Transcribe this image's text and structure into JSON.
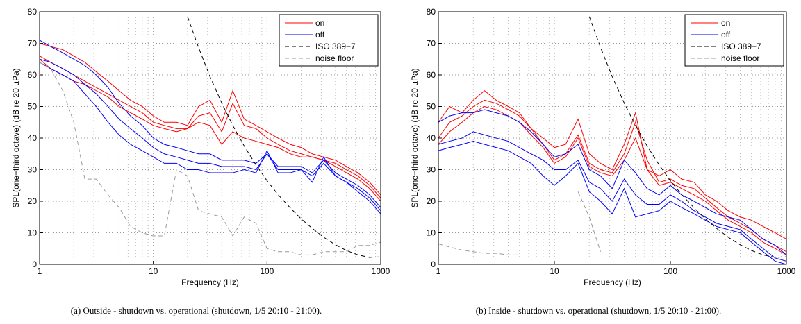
{
  "chart_data": [
    {
      "type": "line",
      "x_label": "Frequency (Hz)",
      "y_label": "SPL(one−third octave) (dB re 20 µPa)",
      "caption": "(a) Outside - shutdown vs. operational (shutdown, 1/5 20:10 - 21:00).",
      "x": [
        1,
        1.25,
        1.6,
        2,
        2.5,
        3.15,
        4,
        5,
        6.3,
        8,
        10,
        12.5,
        16,
        20,
        25,
        31.5,
        40,
        50,
        63,
        80,
        100,
        125,
        160,
        200,
        250,
        315,
        400,
        500,
        630,
        800,
        1000
      ],
      "xscale": "log",
      "xlim": [
        1,
        1000
      ],
      "xticks": [
        1,
        10,
        100,
        1000
      ],
      "ylim": [
        0,
        80
      ],
      "yticks": [
        0,
        10,
        20,
        30,
        40,
        50,
        60,
        70,
        80
      ],
      "grid": true,
      "minor_grid": true,
      "legend": "upper right",
      "series": [
        {
          "name": "on",
          "color": "#ff0000",
          "linestyle": "solid",
          "values": [
            70,
            69,
            68,
            66,
            64,
            61,
            58,
            55,
            52,
            50,
            47,
            45,
            45,
            44,
            50,
            52,
            45,
            55,
            46,
            44,
            42,
            40,
            38,
            37,
            35,
            34,
            33,
            31,
            29,
            26,
            22
          ]
        },
        {
          "color": "#ff0000",
          "linestyle": "solid",
          "values": [
            66,
            64,
            62,
            60,
            58,
            56,
            54,
            52,
            50,
            48,
            45,
            44,
            43,
            43,
            47,
            48,
            42,
            51,
            44,
            43,
            40,
            38,
            36,
            35,
            34,
            33,
            32,
            30,
            28,
            25,
            21
          ]
        },
        {
          "color": "#ff0000",
          "linestyle": "solid",
          "values": [
            65,
            62,
            60,
            58,
            57,
            55,
            53,
            50,
            48,
            46,
            44,
            43,
            42,
            43,
            45,
            44,
            38,
            42,
            40,
            39,
            38,
            37,
            35,
            34,
            34,
            33,
            31,
            29,
            27,
            24,
            20
          ]
        },
        {
          "name": "off",
          "color": "#0000ff",
          "linestyle": "solid",
          "values": [
            71,
            69,
            67,
            65,
            63,
            60,
            56,
            51,
            47,
            44,
            40,
            38,
            37,
            36,
            35,
            35,
            33,
            33,
            33,
            32,
            35,
            31,
            31,
            31,
            29,
            33,
            29,
            27,
            25,
            22,
            18
          ]
        },
        {
          "color": "#0000ff",
          "linestyle": "solid",
          "values": [
            65,
            64,
            62,
            60,
            57,
            54,
            50,
            46,
            43,
            40,
            37,
            35,
            34,
            33,
            32,
            32,
            31,
            31,
            31,
            30,
            35,
            30,
            30,
            30,
            28,
            32,
            28,
            26,
            24,
            21,
            17
          ]
        },
        {
          "color": "#0000ff",
          "linestyle": "solid",
          "values": [
            64,
            62,
            60,
            58,
            54,
            50,
            45,
            41,
            38,
            36,
            34,
            32,
            32,
            30,
            30,
            29,
            29,
            29,
            30,
            29,
            36,
            29,
            29,
            30,
            26,
            34,
            28,
            26,
            23,
            20,
            16
          ]
        },
        {
          "name": "ISO 389−7",
          "color": "#000000",
          "linestyle": "dashed",
          "values": [
            null,
            null,
            null,
            null,
            null,
            null,
            null,
            null,
            null,
            null,
            null,
            null,
            null,
            78.5,
            68.7,
            59.5,
            51.1,
            44,
            37.5,
            31.5,
            26.5,
            22.1,
            17.9,
            14.4,
            11.4,
            8.6,
            6.2,
            4.4,
            3,
            2.2,
            2.4
          ]
        },
        {
          "name": "noise floor",
          "color": "#999999",
          "linestyle": "dashed",
          "values": [
            64,
            62,
            55,
            45,
            27,
            27,
            22,
            18,
            12,
            10,
            9,
            9,
            30,
            28,
            17,
            16,
            15,
            9,
            15,
            13,
            5,
            4,
            4,
            3,
            3,
            4,
            4,
            4,
            6,
            6,
            7
          ]
        }
      ]
    },
    {
      "type": "line",
      "x_label": "Frequency (Hz)",
      "y_label": "SPL(one−third octave) (dB re 20 µPa)",
      "caption": "(b) Inside - shutdown vs. operational (shutdown, 1/5 20:10 - 21:00).",
      "x": [
        1,
        1.25,
        1.6,
        2,
        2.5,
        3.15,
        4,
        5,
        6.3,
        8,
        10,
        12.5,
        16,
        20,
        25,
        31.5,
        40,
        50,
        63,
        80,
        100,
        125,
        160,
        200,
        250,
        315,
        400,
        500,
        630,
        800,
        1000
      ],
      "xscale": "log",
      "xlim": [
        1,
        1000
      ],
      "xticks": [
        1,
        10,
        100,
        1000
      ],
      "ylim": [
        0,
        80
      ],
      "yticks": [
        0,
        10,
        20,
        30,
        40,
        50,
        60,
        70,
        80
      ],
      "grid": true,
      "minor_grid": true,
      "legend": "upper right",
      "series": [
        {
          "name": "on",
          "color": "#ff0000",
          "linestyle": "solid",
          "values": [
            45,
            50,
            48,
            52,
            55,
            52,
            50,
            48,
            43,
            40,
            37,
            38,
            46,
            35,
            32,
            30,
            38,
            48,
            30,
            28,
            30,
            27,
            26,
            22,
            20,
            17,
            15,
            14,
            12,
            10,
            8
          ]
        },
        {
          "color": "#ff0000",
          "linestyle": "solid",
          "values": [
            40,
            45,
            47,
            50,
            52,
            51,
            49,
            47,
            43,
            38,
            33,
            35,
            41,
            32,
            30,
            29,
            35,
            45,
            33,
            26,
            27,
            25,
            24,
            21,
            18,
            15,
            13,
            11,
            8,
            6,
            4
          ]
        },
        {
          "color": "#ff0000",
          "linestyle": "solid",
          "values": [
            38,
            42,
            45,
            48,
            50,
            49,
            47,
            45,
            41,
            37,
            32,
            34,
            40,
            31,
            29,
            28,
            33,
            40,
            30,
            25,
            26,
            24,
            22,
            20,
            17,
            14,
            12,
            10,
            7,
            5,
            3
          ]
        },
        {
          "name": "off",
          "color": "#0000ff",
          "linestyle": "solid",
          "values": [
            45,
            47,
            48,
            48,
            49,
            48,
            47,
            45,
            42,
            38,
            34,
            35,
            38,
            30,
            28,
            24,
            33,
            29,
            24,
            22,
            25,
            22,
            20,
            18,
            16,
            15,
            14,
            11,
            8,
            6,
            3
          ]
        },
        {
          "color": "#0000ff",
          "linestyle": "solid",
          "values": [
            38,
            39,
            40,
            42,
            41,
            40,
            39,
            37,
            35,
            33,
            30,
            30,
            33,
            26,
            24,
            20,
            27,
            22,
            19,
            19,
            22,
            20,
            17,
            15,
            13,
            12,
            11,
            8,
            5,
            2,
            1
          ]
        },
        {
          "color": "#0000ff",
          "linestyle": "solid",
          "values": [
            36,
            37,
            38,
            39,
            38,
            37,
            36,
            34,
            32,
            28,
            25,
            28,
            32,
            23,
            20,
            16,
            24,
            15,
            16,
            17,
            20,
            18,
            16,
            14,
            12,
            11,
            10,
            7,
            4,
            1,
            0
          ]
        },
        {
          "name": "ISO 389−7",
          "color": "#000000",
          "linestyle": "dashed",
          "values": [
            null,
            null,
            null,
            null,
            null,
            null,
            null,
            null,
            null,
            null,
            null,
            null,
            null,
            78.5,
            68.7,
            59.5,
            51.1,
            44,
            37.5,
            31.5,
            26.5,
            22.1,
            17.9,
            14.4,
            11.4,
            8.6,
            6.2,
            4.4,
            3,
            2.2,
            2.4
          ]
        },
        {
          "name": "noise floor",
          "color": "#999999",
          "linestyle": "dashed",
          "values": [
            6.5,
            5.5,
            4.5,
            4,
            3.5,
            3.5,
            3,
            3,
            null,
            null,
            null,
            null,
            23,
            15,
            4,
            null,
            null,
            null,
            null,
            null,
            null,
            null,
            null,
            null,
            null,
            null,
            null,
            null,
            null,
            null,
            null
          ]
        }
      ]
    }
  ]
}
